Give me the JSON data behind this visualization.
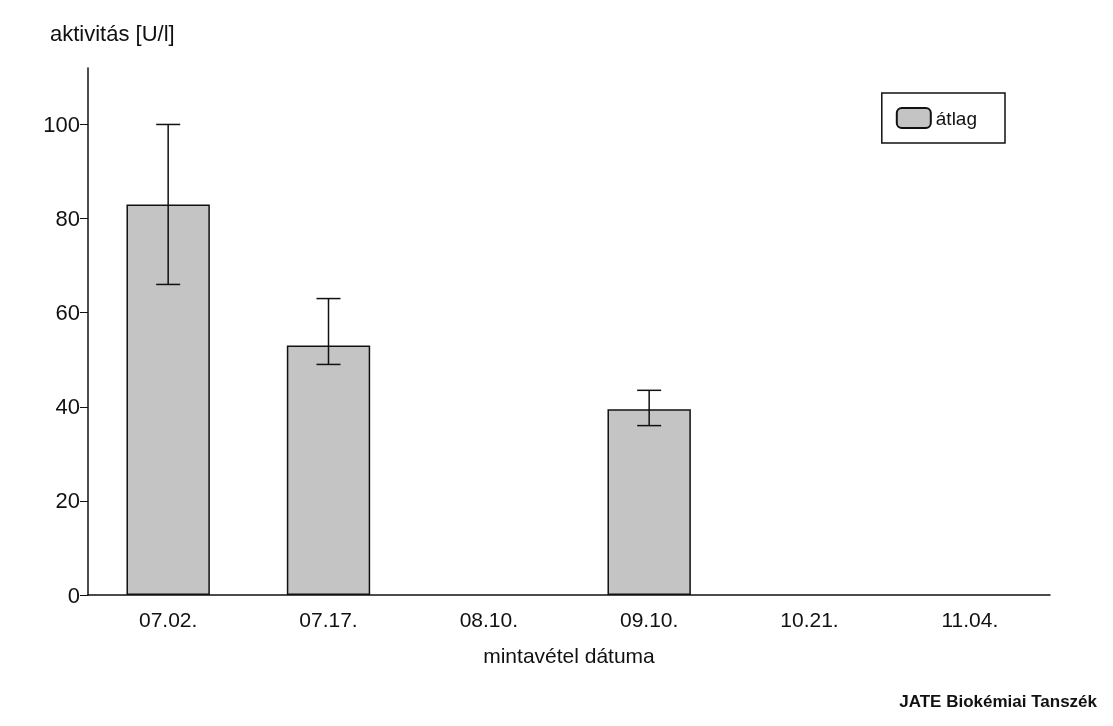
{
  "chart_data": {
    "type": "bar",
    "ylabel": "aktivitás [U/l]",
    "xlabel": "mintavétel dátuma",
    "categories": [
      "07.02.",
      "07.17.",
      "08.10.",
      "09.10.",
      "10.21.",
      "11.04."
    ],
    "series": [
      {
        "name": "átlag",
        "color": "#c4c4c4",
        "values": [
          83,
          53,
          null,
          39.5,
          null,
          null
        ],
        "errors": [
          [
            66,
            100
          ],
          [
            49,
            63
          ],
          null,
          [
            36,
            43.5
          ],
          null,
          null
        ]
      }
    ],
    "ylim": [
      0,
      112
    ],
    "yticks": [
      0,
      20,
      40,
      60,
      80,
      100
    ],
    "grid": false,
    "legend": "top right",
    "annotations": [
      "JATE Biokémiai Tanszék"
    ]
  }
}
